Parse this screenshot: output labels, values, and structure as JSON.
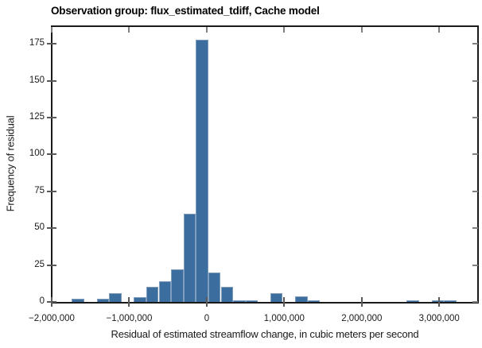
{
  "page": {
    "background": "#ffffff"
  },
  "chart_data": {
    "type": "bar",
    "subtype": "histogram",
    "title": "Observation group: flux_estimated_tdiff, Cache model",
    "xlabel": "Residual of estimated streamflow change, in cubic meters per second",
    "ylabel": "Frequency of residual",
    "xlim": [
      -2000000,
      3500000
    ],
    "ylim": [
      0,
      187
    ],
    "grid": false,
    "legend": false,
    "bar_color": "#3B6E9E",
    "bar_edge_color": "#7E9DBC",
    "axis_color": "#1a1a1a",
    "tick_color": "#595959",
    "mirror_tick_color": "#808080",
    "bin_width": 160000,
    "x_ticks": [
      {
        "value": -2000000,
        "label": "−2,000,000"
      },
      {
        "value": -1000000,
        "label": "−1,000,000"
      },
      {
        "value": 0,
        "label": "0"
      },
      {
        "value": 1000000,
        "label": "1,000,000"
      },
      {
        "value": 2000000,
        "label": "2,000,000"
      },
      {
        "value": 3000000,
        "label": "3,000,000"
      }
    ],
    "y_ticks": [
      {
        "value": 0,
        "label": "0"
      },
      {
        "value": 25,
        "label": "25"
      },
      {
        "value": 50,
        "label": "50"
      },
      {
        "value": 75,
        "label": "75"
      },
      {
        "value": 100,
        "label": "100"
      },
      {
        "value": 125,
        "label": "125"
      },
      {
        "value": 150,
        "label": "150"
      },
      {
        "value": 175,
        "label": "175"
      }
    ],
    "bins": [
      {
        "left": -1740000,
        "count": 2
      },
      {
        "left": -1420000,
        "count": 2
      },
      {
        "left": -1260000,
        "count": 6
      },
      {
        "left": -940000,
        "count": 3
      },
      {
        "left": -780000,
        "count": 10
      },
      {
        "left": -620000,
        "count": 14
      },
      {
        "left": -460000,
        "count": 22
      },
      {
        "left": -300000,
        "count": 60
      },
      {
        "left": -140000,
        "count": 178
      },
      {
        "left": 20000,
        "count": 20
      },
      {
        "left": 180000,
        "count": 10
      },
      {
        "left": 340000,
        "count": 1
      },
      {
        "left": 500000,
        "count": 1
      },
      {
        "left": 820000,
        "count": 6
      },
      {
        "left": 1140000,
        "count": 4
      },
      {
        "left": 1300000,
        "count": 1
      },
      {
        "left": 2580000,
        "count": 1
      },
      {
        "left": 2900000,
        "count": 1
      },
      {
        "left": 3060000,
        "count": 1
      }
    ]
  }
}
